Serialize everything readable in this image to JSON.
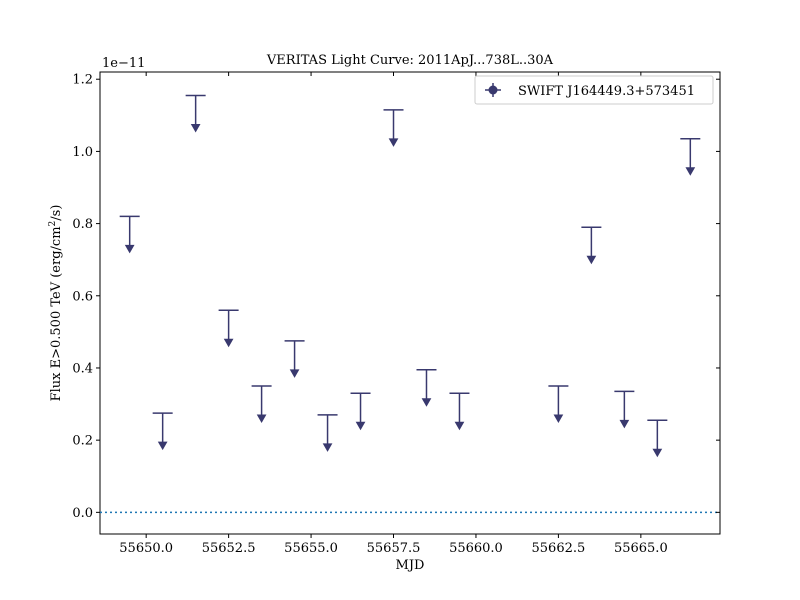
{
  "chart_data": {
    "type": "scatter",
    "title": "VERITAS Light Curve: 2011ApJ...738L..30A",
    "xlabel": "MJD",
    "ylabel_main": "Flux E>0.500 TeV (erg/cm",
    "ylabel_sup": "2",
    "ylabel_tail": "/s)",
    "offset_text": "1e−11",
    "y_scale_factor": 1e-11,
    "xlim": [
      55648.6,
      55667.4
    ],
    "ylim": [
      -0.06,
      1.22
    ],
    "x_ticks": [
      55650.0,
      55652.5,
      55655.0,
      55657.5,
      55660.0,
      55662.5,
      55665.0
    ],
    "x_tick_labels": [
      "55650.0",
      "55652.5",
      "55655.0",
      "55657.5",
      "55660.0",
      "55662.5",
      "55665.0"
    ],
    "y_ticks": [
      0.0,
      0.2,
      0.4,
      0.6,
      0.8,
      1.0,
      1.2
    ],
    "y_tick_labels": [
      "0.0",
      "0.2",
      "0.4",
      "0.6",
      "0.8",
      "1.0",
      "1.2"
    ],
    "zero_line": 0.0,
    "legend_position": "top-right",
    "grid": false,
    "series": [
      {
        "name": "SWIFT J164449.3+573451",
        "color": "#39396e",
        "marker": "upper-limit",
        "x": [
          55649.5,
          55650.5,
          55651.5,
          55652.5,
          55653.5,
          55654.5,
          55655.5,
          55656.5,
          55657.5,
          55658.5,
          55659.5,
          55662.5,
          55663.5,
          55664.5,
          55665.5,
          55666.5
        ],
        "upper_limits": [
          0.82,
          0.275,
          1.155,
          0.56,
          0.35,
          0.475,
          0.27,
          0.33,
          1.115,
          0.395,
          0.33,
          0.35,
          0.79,
          0.335,
          0.255,
          1.035
        ]
      }
    ]
  }
}
